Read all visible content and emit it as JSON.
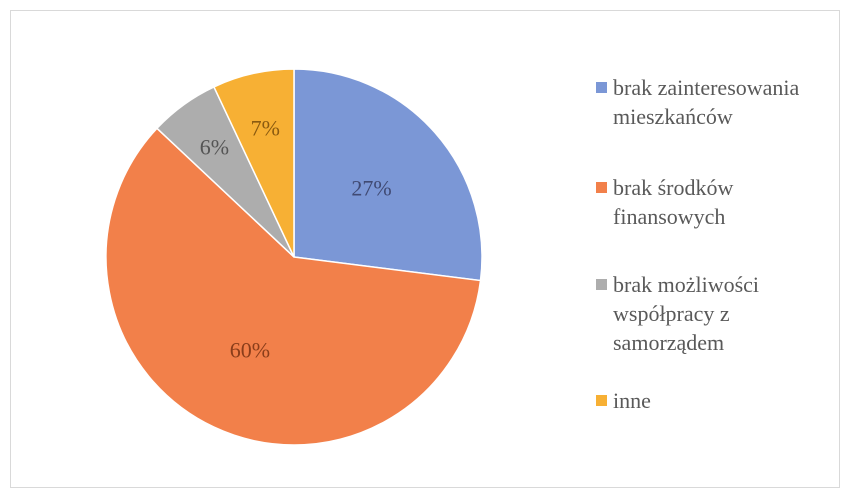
{
  "chart_data": {
    "type": "pie",
    "title": "",
    "categories": [
      "brak zainteresowania mieszkańców",
      "brak środków finansowych",
      "brak możliwości współpracy z samorządem",
      "inne"
    ],
    "values": [
      27,
      60,
      6,
      7
    ],
    "data_labels": [
      "27%",
      "60%",
      "6%",
      "7%"
    ],
    "colors": [
      "#7b97d6",
      "#f2804a",
      "#adadad",
      "#f7b034"
    ],
    "legend_position": "right",
    "legend_lines": [
      [
        "brak zainteresowania",
        "mieszkańców"
      ],
      [
        "brak środków",
        "finansowych"
      ],
      [
        "brak możliwości",
        "współpracy z",
        "samorządem"
      ],
      [
        "inne"
      ]
    ]
  }
}
